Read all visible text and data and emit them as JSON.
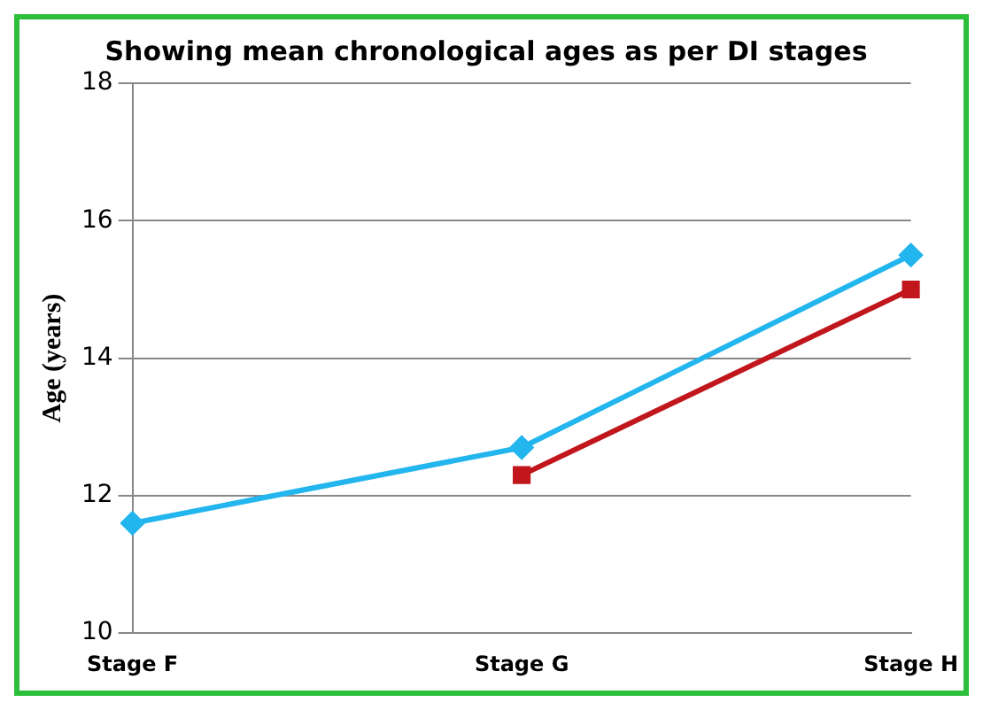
{
  "chart_data": {
    "type": "line",
    "title": "Showing mean chronological ages as per DI stages",
    "ylabel": "Age (years)",
    "categories": [
      "Stage F",
      "Stage G",
      "Stage H"
    ],
    "series": [
      {
        "color": "#22b5ee",
        "values": [
          11.6,
          12.7,
          15.5
        ],
        "marker": "diamond"
      },
      {
        "color": "#c0161c",
        "values": [
          null,
          12.3,
          15.0
        ],
        "marker": "square"
      }
    ],
    "ylim": [
      10,
      18
    ],
    "yticks": [
      10,
      12,
      14,
      16,
      18
    ],
    "grid": "y",
    "legend": false
  }
}
